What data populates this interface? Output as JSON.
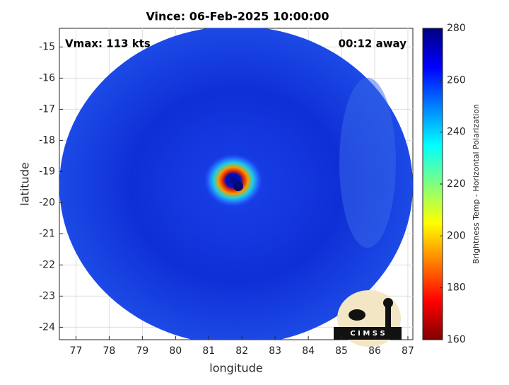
{
  "chart_data": {
    "type": "image-map",
    "title": "Vince: 06-Feb-2025 10:00:00",
    "annotations": [
      "Vmax: 113 kts",
      "00:12 away"
    ],
    "x_label": "longitude",
    "y_label": "latitude",
    "xlim": [
      76.5,
      87.15
    ],
    "xticks": [
      77,
      78,
      79,
      80,
      81,
      82,
      83,
      84,
      85,
      86,
      87
    ],
    "ylim": [
      -24.4,
      -14.4
    ],
    "yticks": [
      -24,
      -23,
      -22,
      -21,
      -20,
      -19,
      -18,
      -17,
      -16,
      -15
    ],
    "grid": true,
    "colorbar": {
      "label": "Brightness Temp - Horizontal Polarization",
      "lim": [
        160,
        280
      ],
      "ticks": [
        160,
        180,
        200,
        220,
        240,
        260,
        280
      ]
    },
    "logo": "C I M S S"
  }
}
